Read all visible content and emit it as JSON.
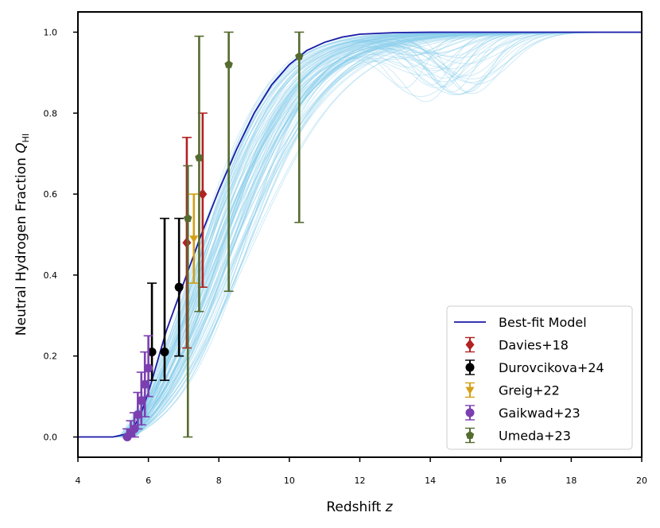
{
  "chart_data": {
    "type": "scatter",
    "title": "",
    "xlabel": "Redshift ",
    "xlabel_var": "z",
    "ylabel": "Neutral Hydrogen Fraction ",
    "ylabel_var": "Q",
    "ylabel_sub": "HI",
    "xlim": [
      4,
      20
    ],
    "ylim": [
      -0.05,
      1.05
    ],
    "xticks": [
      4,
      6,
      8,
      10,
      12,
      14,
      16,
      18,
      20
    ],
    "yticks": [
      0.0,
      0.2,
      0.4,
      0.6,
      0.8,
      1.0
    ],
    "xtick_labels": [
      "4",
      "6",
      "8",
      "10",
      "12",
      "14",
      "16",
      "18",
      "20"
    ],
    "ytick_labels": [
      "0.0",
      "0.2",
      "0.4",
      "0.6",
      "0.8",
      "1.0"
    ],
    "grid": false,
    "legend_position": "lower-right",
    "best_fit": {
      "name": "Best-fit Model",
      "color": "#1a1aa6",
      "x": [
        4.0,
        5.0,
        5.5,
        5.8,
        6.0,
        6.2,
        6.5,
        7.0,
        7.5,
        8.0,
        8.5,
        9.0,
        9.5,
        10.0,
        10.5,
        11.0,
        11.5,
        12.0,
        13.0,
        14.0,
        16.0,
        20.0
      ],
      "y": [
        0.0,
        0.0,
        0.01,
        0.06,
        0.11,
        0.17,
        0.26,
        0.38,
        0.5,
        0.61,
        0.71,
        0.8,
        0.87,
        0.92,
        0.955,
        0.975,
        0.988,
        0.995,
        0.999,
        1.0,
        1.0,
        1.0
      ]
    },
    "posterior_samples": {
      "name": "Posterior samples",
      "color": "#87ceeb",
      "count": 90
    },
    "series": [
      {
        "name": "Davies+18",
        "color": "#b22222",
        "marker": "diamond",
        "points": [
          {
            "x": 7.09,
            "y": 0.48,
            "err_low": 0.26,
            "err_high": 0.26
          },
          {
            "x": 7.54,
            "y": 0.6,
            "err_low": 0.23,
            "err_high": 0.2
          }
        ]
      },
      {
        "name": "Durovcikova+24",
        "color": "#000000",
        "marker": "circle",
        "points": [
          {
            "x": 6.1,
            "y": 0.21,
            "err_low": 0.07,
            "err_high": 0.17
          },
          {
            "x": 6.46,
            "y": 0.21,
            "err_low": 0.07,
            "err_high": 0.33
          },
          {
            "x": 6.87,
            "y": 0.37,
            "err_low": 0.17,
            "err_high": 0.17
          }
        ]
      },
      {
        "name": "Greig+22",
        "color": "#d4a017",
        "marker": "triangle-down",
        "points": [
          {
            "x": 7.29,
            "y": 0.49,
            "err_low": 0.11,
            "err_high": 0.11
          }
        ]
      },
      {
        "name": "Gaikwad+23",
        "color": "#7b3fb0",
        "marker": "circle",
        "points": [
          {
            "x": 5.4,
            "y": 0.0,
            "err_low": 0.0,
            "err_high": 0.02
          },
          {
            "x": 5.5,
            "y": 0.01,
            "err_low": 0.01,
            "err_high": 0.03
          },
          {
            "x": 5.6,
            "y": 0.02,
            "err_low": 0.02,
            "err_high": 0.04
          },
          {
            "x": 5.7,
            "y": 0.055,
            "err_low": 0.035,
            "err_high": 0.055
          },
          {
            "x": 5.8,
            "y": 0.09,
            "err_low": 0.06,
            "err_high": 0.07
          },
          {
            "x": 5.9,
            "y": 0.13,
            "err_low": 0.08,
            "err_high": 0.08
          },
          {
            "x": 6.0,
            "y": 0.17,
            "err_low": 0.07,
            "err_high": 0.08
          }
        ]
      },
      {
        "name": "Umeda+23",
        "color": "#556b2f",
        "marker": "pentagon",
        "points": [
          {
            "x": 7.12,
            "y": 0.54,
            "err_low": 0.54,
            "err_high": 0.13
          },
          {
            "x": 7.44,
            "y": 0.69,
            "err_low": 0.38,
            "err_high": 0.3
          },
          {
            "x": 8.28,
            "y": 0.92,
            "err_low": 0.56,
            "err_high": 0.08
          },
          {
            "x": 10.28,
            "y": 0.94,
            "err_low": 0.41,
            "err_high": 0.06
          }
        ]
      }
    ]
  }
}
